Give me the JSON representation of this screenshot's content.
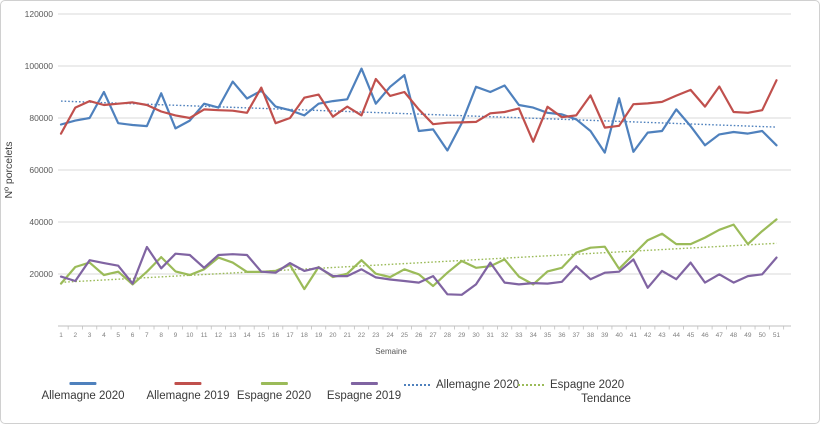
{
  "chart_data": {
    "type": "line",
    "title": "",
    "xlabel": "Semaine",
    "ylabel": "Nº porcelets",
    "ylim": [
      0,
      120000
    ],
    "yticks": [
      20000,
      40000,
      60000,
      80000,
      100000,
      120000
    ],
    "grid": "horizontal",
    "legend_position": "bottom",
    "x": [
      1,
      2,
      3,
      4,
      5,
      6,
      7,
      8,
      9,
      10,
      11,
      12,
      13,
      14,
      15,
      16,
      17,
      18,
      19,
      20,
      21,
      22,
      23,
      24,
      25,
      26,
      27,
      28,
      29,
      30,
      31,
      32,
      33,
      34,
      35,
      36,
      37,
      38,
      39,
      40,
      41,
      42,
      43,
      44,
      45,
      46,
      47,
      48,
      49,
      50,
      51
    ],
    "series": [
      {
        "name": "Allemagne 2020",
        "color": "#4f81bd",
        "style": "solid",
        "values": [
          77500,
          79000,
          80000,
          90000,
          78000,
          77300,
          76900,
          89500,
          76000,
          79000,
          85500,
          84000,
          94000,
          87500,
          90500,
          84400,
          83000,
          81000,
          85500,
          86500,
          87200,
          99000,
          85500,
          92000,
          96500,
          75000,
          75600,
          67500,
          78000,
          92000,
          90000,
          92500,
          85000,
          84000,
          82000,
          81400,
          79500,
          75000,
          66700,
          87600,
          67000,
          74400,
          75000,
          83300,
          76900,
          69500,
          73700,
          74600,
          74000,
          75000,
          69500
        ]
      },
      {
        "name": "Allemagne 2019",
        "color": "#c0504d",
        "style": "solid",
        "values": [
          74000,
          84000,
          86500,
          85000,
          85500,
          86000,
          85000,
          82500,
          81000,
          80000,
          83300,
          83000,
          82800,
          82000,
          91700,
          78000,
          80000,
          87800,
          89000,
          80500,
          84400,
          81000,
          95000,
          88500,
          90000,
          83300,
          77600,
          78200,
          78300,
          78500,
          81800,
          82300,
          83700,
          70900,
          84300,
          80300,
          81000,
          88700,
          76300,
          77000,
          85300,
          85600,
          86200,
          88600,
          90800,
          84400,
          92100,
          82300,
          82000,
          83000,
          94500
        ]
      },
      {
        "name": "Espagne 2020",
        "color": "#9bbb59",
        "style": "solid",
        "values": [
          16300,
          22700,
          24400,
          19600,
          20900,
          16000,
          20900,
          26500,
          21000,
          19600,
          21800,
          26300,
          24400,
          20800,
          20800,
          21200,
          23500,
          14200,
          22700,
          18800,
          20100,
          25300,
          20100,
          18800,
          21800,
          19900,
          15400,
          20500,
          25000,
          22400,
          23000,
          25600,
          19000,
          16000,
          21000,
          22400,
          28200,
          30100,
          30500,
          22000,
          27500,
          33000,
          35500,
          31500,
          31500,
          34000,
          37000,
          39000,
          31500,
          36500,
          41000
        ]
      },
      {
        "name": "Espagne 2019",
        "color": "#8064a2",
        "style": "solid",
        "values": [
          19000,
          17300,
          25300,
          24200,
          23200,
          16300,
          30400,
          22200,
          27800,
          27300,
          22400,
          27300,
          27600,
          27300,
          20900,
          20500,
          24200,
          21200,
          22500,
          19200,
          19200,
          21800,
          18700,
          17900,
          17300,
          16700,
          19200,
          12200,
          12000,
          16000,
          24400,
          16700,
          16000,
          16500,
          16300,
          17000,
          23000,
          18000,
          20500,
          20900,
          25600,
          14700,
          21200,
          18000,
          24400,
          16700,
          19900,
          16700,
          19200,
          19900,
          26300
        ]
      },
      {
        "name": "Allemagne 2020",
        "color": "#4f81bd",
        "style": "dotted",
        "group": "Tendance",
        "trend_start": 86500,
        "trend_end": 76500
      },
      {
        "name": "Espagne 2020",
        "color": "#9bbb59",
        "style": "dotted",
        "group": "Tendance",
        "trend_start": 16800,
        "trend_end": 31800
      }
    ],
    "tendance_label": "Tendance"
  },
  "colors": {
    "gridline": "#d9d9d9",
    "axis": "#bfbfbf",
    "y_tick_text": "#595959",
    "x_tick_text": "#808080"
  }
}
